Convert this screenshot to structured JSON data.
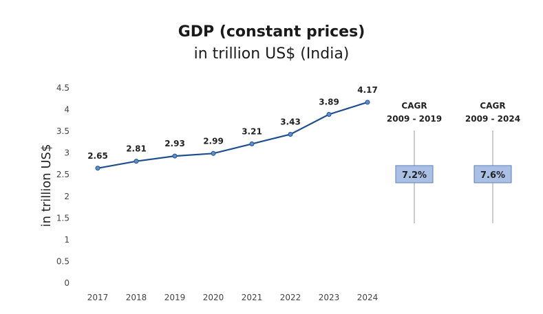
{
  "chart_data": {
    "type": "line",
    "title": "GDP (constant prices)",
    "subtitle": "in trillion US$ (India)",
    "ylabel": "in trillion US$",
    "xlabel": "",
    "categories": [
      "2017",
      "2018",
      "2019",
      "2020",
      "2021",
      "2022",
      "2023",
      "2024"
    ],
    "values": [
      2.65,
      2.81,
      2.93,
      2.99,
      3.21,
      3.43,
      3.89,
      4.17
    ],
    "data_labels": [
      "2.65",
      "2.81",
      "2.93",
      "2.99",
      "3.21",
      "3.43",
      "3.89",
      "4.17"
    ],
    "y_ticks": [
      "0",
      "0.5",
      "1",
      "1.5",
      "2",
      "2.5",
      "3",
      "3.5",
      "4",
      "4.5"
    ],
    "ylim": [
      0,
      4.5
    ],
    "grid": false,
    "line_color": "#1f4e8c",
    "marker_color": "#5b8fd0"
  },
  "cagr": [
    {
      "line1": "CAGR",
      "line2": "2009 - 2019",
      "value": "7.2%"
    },
    {
      "line1": "CAGR",
      "line2": "2009 - 2024",
      "value": "7.6%"
    }
  ],
  "colors": {
    "cagr_box_fill": "#a9bfe3",
    "cagr_box_stroke": "#5b7fb8",
    "cagr_line": "#aaaaaa"
  }
}
